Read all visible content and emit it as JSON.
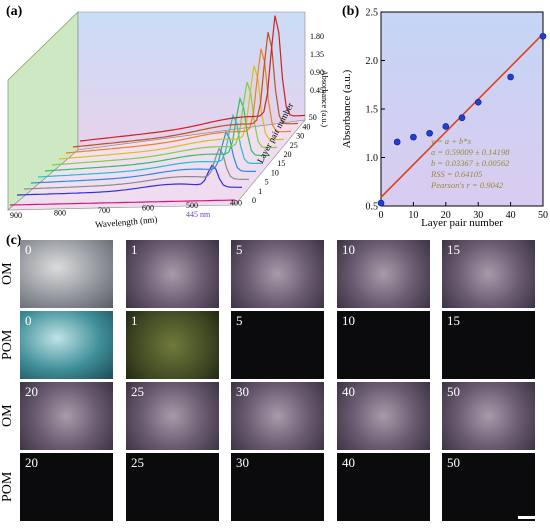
{
  "panels": {
    "a": {
      "label": "(a)"
    },
    "b": {
      "label": "(b)"
    },
    "c": {
      "label": "(c)"
    }
  },
  "panel_a": {
    "xlabel": "Wavelength (nm)",
    "zlabel": "Layer pair number",
    "ylabel": "Absorbance (a.u.)",
    "annotation": "445 nm",
    "x_ticks": [
      "900",
      "800",
      "700",
      "600",
      "500",
      "400"
    ],
    "y_ticks": [
      "0.45",
      "0.90",
      "1.35",
      "1.80"
    ],
    "z_ticks": [
      "0",
      "1",
      "5",
      "10",
      "15",
      "20",
      "25",
      "30",
      "40",
      "50"
    ]
  },
  "chart_data": {
    "type": "scatter",
    "xlabel": "Layer pair number",
    "ylabel": "Absorbance (a.u.)",
    "xlim": [
      0,
      50
    ],
    "ylim": [
      0.5,
      2.5
    ],
    "x_ticks": [
      "0",
      "10",
      "20",
      "30",
      "40",
      "50"
    ],
    "y_ticks": [
      "0.5",
      "1.0",
      "1.5",
      "2.0",
      "2.5"
    ],
    "grid": false,
    "series": [
      {
        "x": [
          0,
          5,
          10,
          15,
          20,
          25,
          30,
          40,
          50
        ],
        "values": [
          0.53,
          1.16,
          1.21,
          1.25,
          1.32,
          1.41,
          1.57,
          1.83,
          2.25
        ],
        "marker_color": "#1f3fd6"
      }
    ],
    "fit": {
      "intercept": 0.59009,
      "slope": 0.03367,
      "color": "#e2401a"
    },
    "fit_text": [
      "y = a + b*x",
      "a = 0.59009 ± 0.14198",
      "b = 0.03367 ± 0.00562",
      "RSS = 0.64105",
      "Pearson's r = 0.9042"
    ],
    "fit_text_color": "#9a8a3a"
  },
  "panel_c": {
    "rows": [
      {
        "label": "OM",
        "tiles": [
          "0",
          "1",
          "5",
          "10",
          "15"
        ]
      },
      {
        "label": "POM",
        "tiles": [
          "0",
          "1",
          "5",
          "10",
          "15"
        ]
      },
      {
        "label": "OM",
        "tiles": [
          "20",
          "25",
          "30",
          "40",
          "50"
        ]
      },
      {
        "label": "POM",
        "tiles": [
          "20",
          "25",
          "30",
          "40",
          "50"
        ]
      }
    ]
  },
  "colors": {
    "plot_bg_top": "#c5d5f5",
    "plot_bg_bottom": "#d9ccf0",
    "side_wall": "#cfe8c4",
    "fit_line": "#e2401a",
    "marker": "#1f3fd6"
  }
}
